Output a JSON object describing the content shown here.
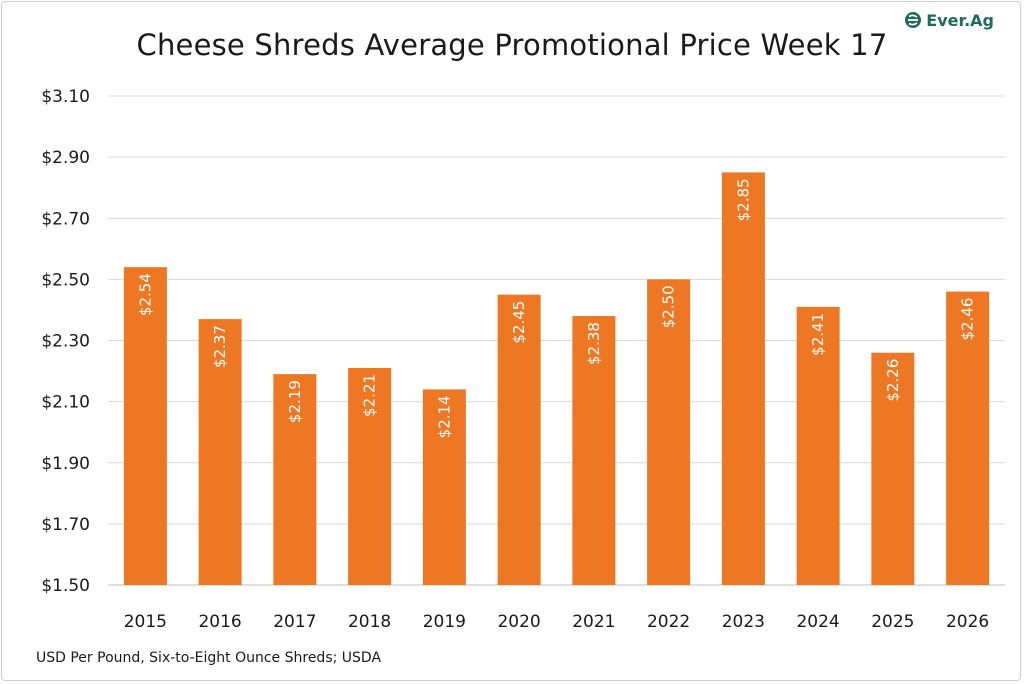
{
  "chart_data": {
    "type": "bar",
    "title": "Cheese Shreds Average Promotional Price Week 17",
    "categories": [
      "2015",
      "2016",
      "2017",
      "2018",
      "2019",
      "2020",
      "2021",
      "2022",
      "2023",
      "2024",
      "2025",
      "2026"
    ],
    "values": [
      2.54,
      2.37,
      2.19,
      2.21,
      2.14,
      2.45,
      2.38,
      2.5,
      2.85,
      2.41,
      2.26,
      2.46
    ],
    "data_labels": [
      "$2.54",
      "$2.37",
      "$2.19",
      "$2.21",
      "$2.14",
      "$2.45",
      "$2.38",
      "$2.50",
      "$2.85",
      "$2.41",
      "$2.26",
      "$2.46"
    ],
    "ylim": [
      1.5,
      3.1
    ],
    "yticks": [
      1.5,
      1.7,
      1.9,
      2.1,
      2.3,
      2.5,
      2.7,
      2.9,
      3.1
    ],
    "ytick_labels": [
      "$1.50",
      "$1.70",
      "$1.90",
      "$2.10",
      "$2.30",
      "$2.50",
      "$2.70",
      "$2.90",
      "$3.10"
    ],
    "grid": true,
    "legend": "none",
    "bar_color": "#ED7723",
    "grid_color": "#d9d9d9"
  },
  "source_note": "USD Per Pound, Six-to-Eight Ounce Shreds; USDA",
  "logo": {
    "text": "Ever.Ag",
    "color": "#1e6b5c"
  }
}
